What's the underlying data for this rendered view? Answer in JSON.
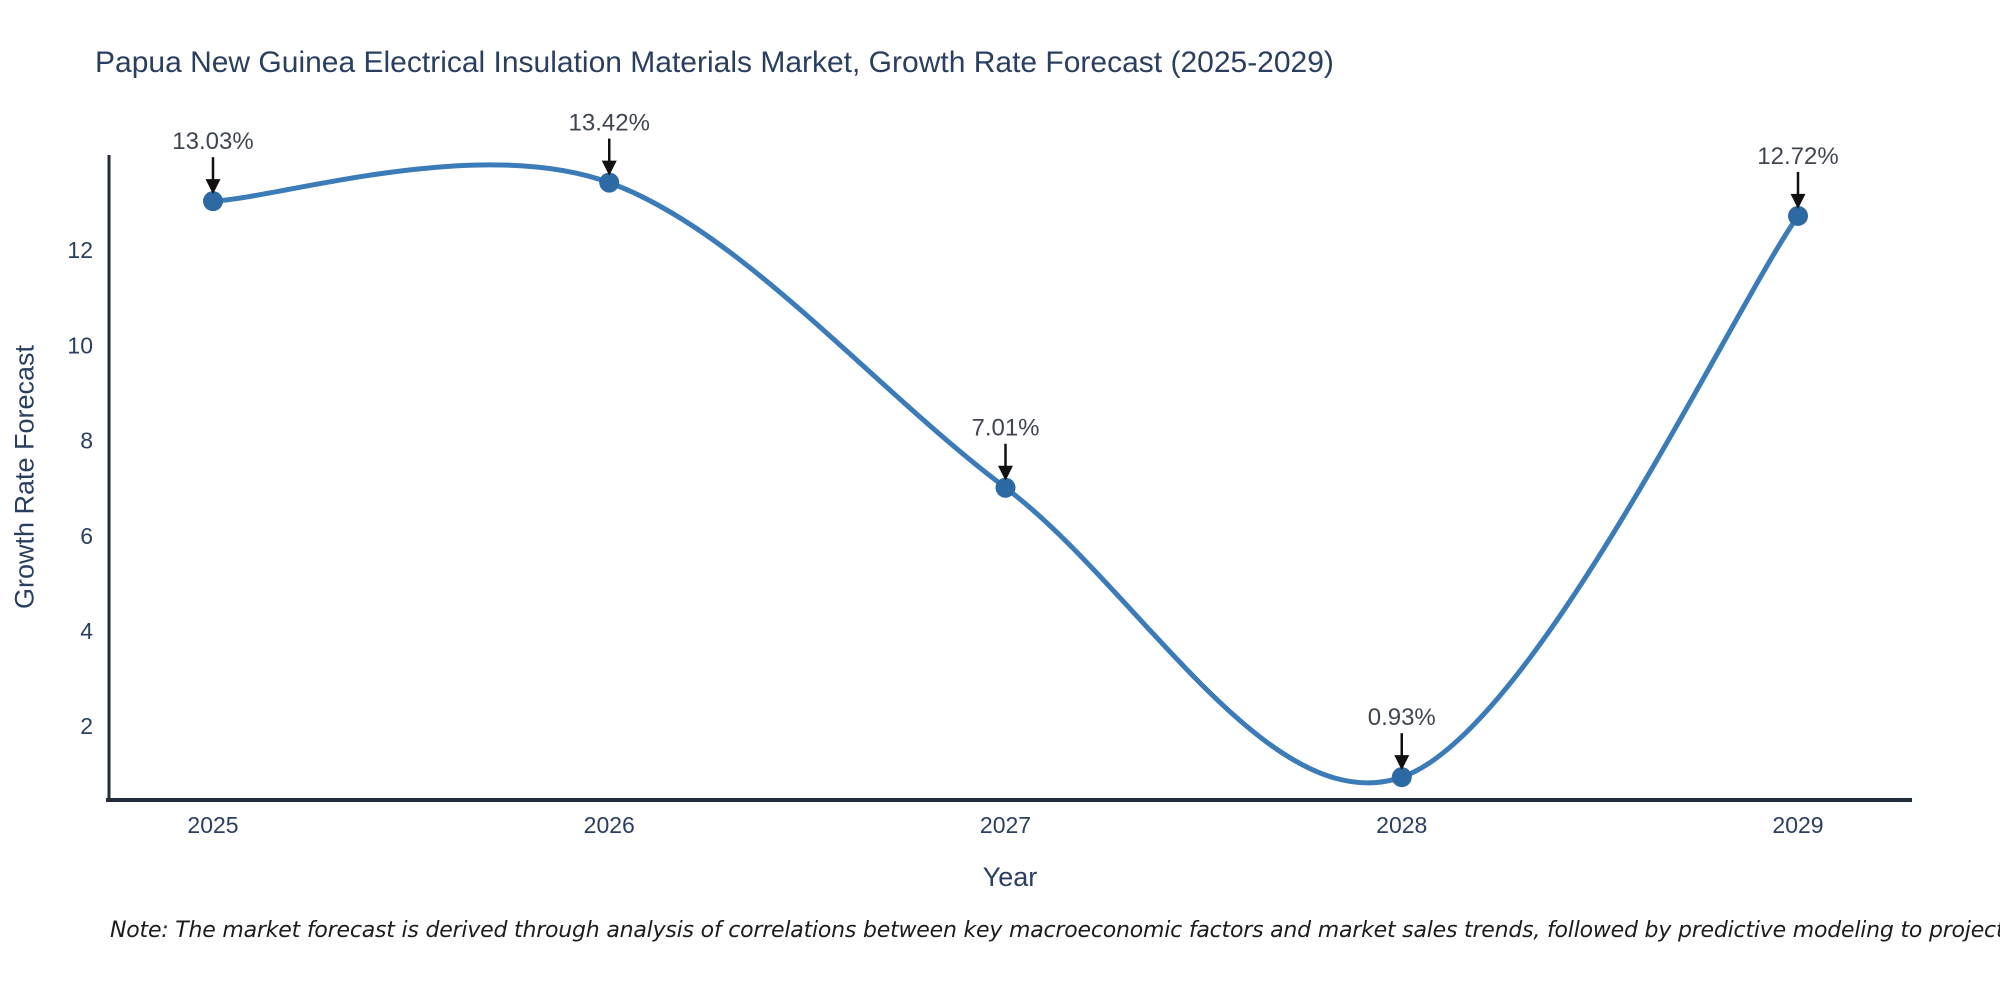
{
  "chart_data": {
    "type": "line",
    "line_shape": "spline",
    "title": "Papua New Guinea Electrical Insulation Materials Market, Growth Rate Forecast (2025-2029)",
    "xlabel": "Year",
    "ylabel": "Growth Rate Forecast",
    "note": "Note: The market forecast is derived through analysis of correlations between key macroeconomic factors and market sales trends, followed by predictive modeling to project future sales",
    "categories": [
      "2025",
      "2026",
      "2027",
      "2028",
      "2029"
    ],
    "series": [
      {
        "name": "Growth Rate Forecast",
        "values": [
          13.03,
          13.42,
          7.01,
          0.93,
          12.72
        ]
      }
    ],
    "point_labels": [
      "13.03%",
      "13.42%",
      "7.01%",
      "0.93%",
      "12.72%"
    ],
    "yticks": [
      2,
      4,
      6,
      8,
      10,
      12
    ],
    "ylim": [
      0.45,
      14.0
    ],
    "grid": false,
    "legend": "none",
    "colors": {
      "line": "#3b7bb8",
      "marker": "#2d6aa3",
      "axis_line": "#222b38",
      "axis_text": "#2a3f5f",
      "annotation_text": "#404650",
      "arrow": "#111111",
      "background": "#ffffff"
    }
  }
}
